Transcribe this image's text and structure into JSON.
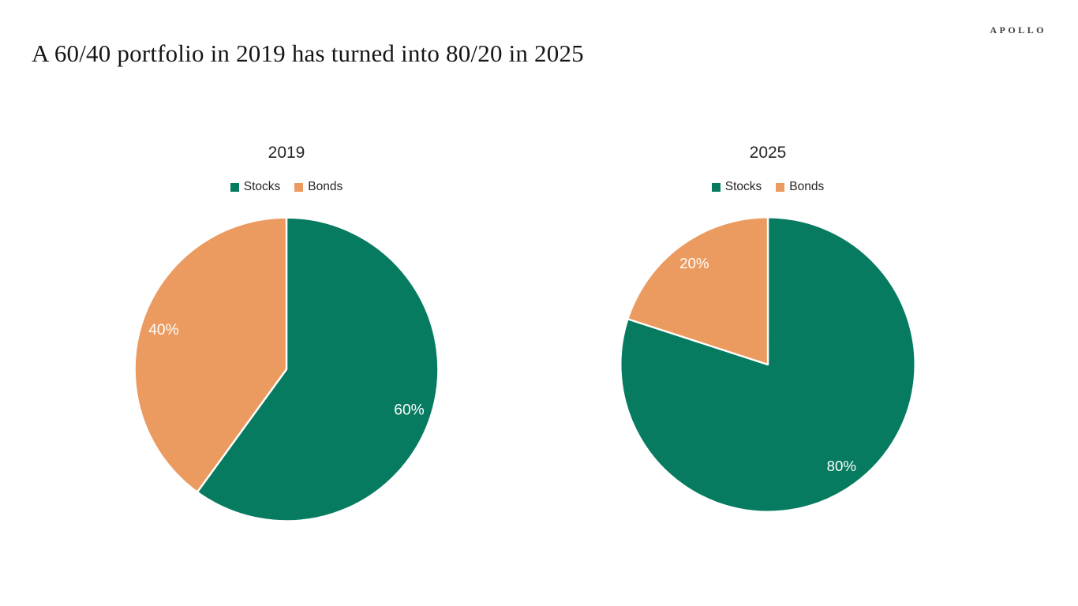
{
  "brand": {
    "logo_text": "APOLLO"
  },
  "header": {
    "title": "A 60/40 portfolio in 2019 has turned into 80/20 in 2025"
  },
  "colors": {
    "stocks_green": "#067B60",
    "bonds_orange": "#EC9B60",
    "slice_label": "#FFFFFF",
    "text_dark": "#262626",
    "background": "#FFFFFF"
  },
  "chart_data": [
    {
      "type": "pie",
      "title": "2019",
      "categories": [
        "Stocks",
        "Bonds"
      ],
      "values": [
        60,
        40
      ],
      "labels": [
        "60%",
        "40%"
      ],
      "colors": [
        "#067B60",
        "#EC9B60"
      ],
      "label_color": "#FFFFFF",
      "legend_position": "top",
      "start_angle": "12-oclock",
      "direction": "clockwise"
    },
    {
      "type": "pie",
      "title": "2025",
      "categories": [
        "Stocks",
        "Bonds"
      ],
      "values": [
        80,
        20
      ],
      "labels": [
        "80%",
        "20%"
      ],
      "colors": [
        "#067B60",
        "#EC9B60"
      ],
      "label_color": "#FFFFFF",
      "legend_position": "top",
      "start_angle": "12-oclock",
      "direction": "clockwise"
    }
  ]
}
